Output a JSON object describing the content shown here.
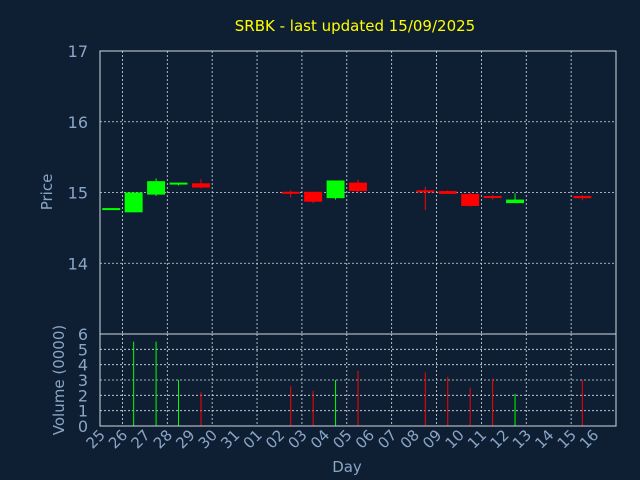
{
  "title": "SRBK - last updated 15/09/2025",
  "colors": {
    "background": "#0f1f33",
    "up": "#00ff00",
    "down": "#ff0000",
    "title": "#ffff00",
    "axis_text": "#8aa6c6",
    "grid": "#d8dde5"
  },
  "chart_data": [
    {
      "type": "candlestick",
      "ylabel": "Price",
      "ylim": [
        13,
        17
      ],
      "yticks": [
        "14",
        "15",
        "16",
        "17"
      ],
      "grid": true,
      "categories": [
        "25",
        "26",
        "27",
        "28",
        "29",
        "30",
        "31",
        "01",
        "02",
        "03",
        "04",
        "05",
        "06",
        "07",
        "08",
        "09",
        "10",
        "11",
        "12",
        "13",
        "14",
        "15",
        "16"
      ],
      "candles": [
        {
          "day": "25",
          "open": 14.78,
          "high": 14.78,
          "low": 14.78,
          "close": 14.78
        },
        {
          "day": "26",
          "open": 14.72,
          "high": 15.0,
          "low": 14.72,
          "close": 15.0
        },
        {
          "day": "27",
          "open": 14.97,
          "high": 15.2,
          "low": 14.95,
          "close": 15.16
        },
        {
          "day": "28",
          "open": 15.12,
          "high": 15.14,
          "low": 15.1,
          "close": 15.14
        },
        {
          "day": "29",
          "open": 15.13,
          "high": 15.19,
          "low": 15.06,
          "close": 15.07
        },
        {
          "day": "02",
          "open": 15.01,
          "high": 15.03,
          "low": 14.93,
          "close": 15.0
        },
        {
          "day": "03",
          "open": 15.01,
          "high": 15.01,
          "low": 14.85,
          "close": 14.87
        },
        {
          "day": "04",
          "open": 14.92,
          "high": 15.17,
          "low": 14.9,
          "close": 15.17
        },
        {
          "day": "05",
          "open": 15.14,
          "high": 15.18,
          "low": 15.0,
          "close": 15.02
        },
        {
          "day": "08",
          "open": 15.03,
          "high": 15.08,
          "low": 14.75,
          "close": 15.01
        },
        {
          "day": "09",
          "open": 15.02,
          "high": 15.03,
          "low": 14.98,
          "close": 14.98
        },
        {
          "day": "10",
          "open": 14.98,
          "high": 15.0,
          "low": 14.8,
          "close": 14.81
        },
        {
          "day": "11",
          "open": 14.95,
          "high": 14.96,
          "low": 14.9,
          "close": 14.93
        },
        {
          "day": "12",
          "open": 14.85,
          "high": 14.99,
          "low": 14.85,
          "close": 14.9
        },
        {
          "day": "15",
          "open": 14.95,
          "high": 14.96,
          "low": 14.89,
          "close": 14.92
        }
      ]
    },
    {
      "type": "bar",
      "ylabel": "Volume (0000)",
      "xlabel": "Day",
      "ylim": [
        0,
        6
      ],
      "yticks": [
        "0",
        "1",
        "2",
        "3",
        "4",
        "5",
        "6"
      ],
      "grid": true,
      "categories": [
        "25",
        "26",
        "27",
        "28",
        "29",
        "30",
        "31",
        "01",
        "02",
        "03",
        "04",
        "05",
        "06",
        "07",
        "08",
        "09",
        "10",
        "11",
        "12",
        "13",
        "14",
        "15",
        "16"
      ],
      "volumes": [
        {
          "day": "26",
          "value": 5.5,
          "direction": "up"
        },
        {
          "day": "27",
          "value": 5.5,
          "direction": "up"
        },
        {
          "day": "28",
          "value": 3.0,
          "direction": "up"
        },
        {
          "day": "29",
          "value": 2.2,
          "direction": "down"
        },
        {
          "day": "02",
          "value": 2.6,
          "direction": "down"
        },
        {
          "day": "03",
          "value": 2.3,
          "direction": "down"
        },
        {
          "day": "04",
          "value": 3.0,
          "direction": "up"
        },
        {
          "day": "05",
          "value": 3.6,
          "direction": "down"
        },
        {
          "day": "08",
          "value": 3.5,
          "direction": "down"
        },
        {
          "day": "09",
          "value": 3.2,
          "direction": "down"
        },
        {
          "day": "10",
          "value": 2.5,
          "direction": "down"
        },
        {
          "day": "11",
          "value": 3.1,
          "direction": "down"
        },
        {
          "day": "12",
          "value": 2.1,
          "direction": "up"
        },
        {
          "day": "15",
          "value": 3.0,
          "direction": "down"
        }
      ]
    }
  ]
}
